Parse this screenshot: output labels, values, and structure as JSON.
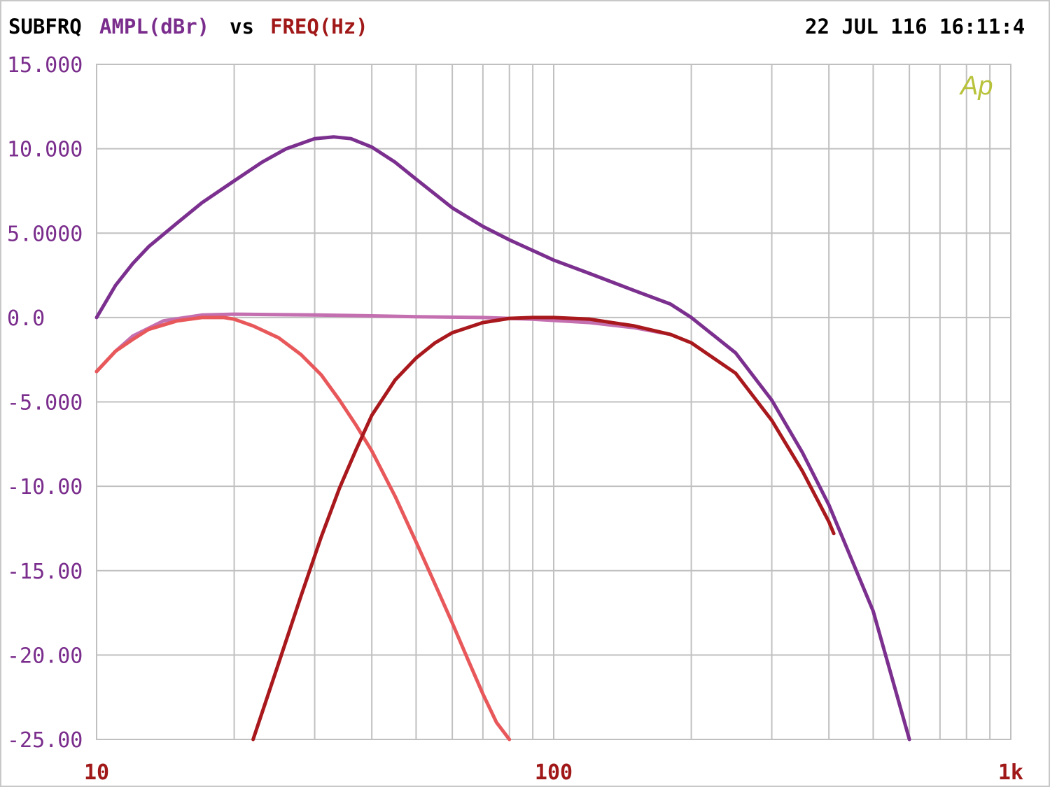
{
  "header": {
    "test_name": "SUBFRQ",
    "y_quantity": "AMPL(dBr)",
    "vs_word": "vs",
    "x_quantity": "FREQ(Hz)",
    "timestamp": "22 JUL 116 16:11:4"
  },
  "logo_text": "Ap",
  "colors": {
    "y_axis": "#7a2d8c",
    "x_axis": "#a01818",
    "grid": "#c0c0c0",
    "logo": "#b8c23a",
    "header_text": "#000000"
  },
  "chart_data": {
    "type": "line",
    "title": "",
    "xlabel": "FREQ(Hz)",
    "ylabel": "AMPL(dBr)",
    "x_scale": "log",
    "xlim": [
      10,
      1000
    ],
    "ylim": [
      -25,
      15
    ],
    "grid": true,
    "y_ticks": [
      15,
      10,
      5,
      0,
      -5,
      -10,
      -15,
      -20,
      -25
    ],
    "y_tick_labels": [
      "15.000",
      "10.000",
      "5.0000",
      "0.0",
      "-5.000",
      "-10.00",
      "-15.00",
      "-20.00",
      "-25.00"
    ],
    "x_ticks": [
      10,
      100,
      1000
    ],
    "x_tick_labels": [
      "10",
      "100",
      "1k"
    ],
    "series": [
      {
        "color": "#7b2f8e",
        "x": [
          10,
          11,
          12,
          13,
          15,
          17,
          20,
          23,
          26,
          30,
          33,
          36,
          40,
          45,
          50,
          60,
          70,
          80,
          100,
          120,
          150,
          180,
          200,
          250,
          300,
          350,
          400,
          500,
          600
        ],
        "y": [
          0,
          1.9,
          3.2,
          4.2,
          5.6,
          6.8,
          8.1,
          9.2,
          10.0,
          10.6,
          10.7,
          10.6,
          10.1,
          9.2,
          8.2,
          6.5,
          5.4,
          4.6,
          3.4,
          2.6,
          1.6,
          0.8,
          0.0,
          -2.1,
          -4.9,
          -8.0,
          -11.1,
          -17.4,
          -25.0
        ]
      },
      {
        "color": "#c46fb0",
        "x": [
          10,
          11,
          12,
          14,
          17,
          20,
          30,
          40,
          50,
          70,
          90,
          120,
          150,
          180
        ],
        "y": [
          -3.2,
          -2.0,
          -1.1,
          -0.2,
          0.15,
          0.2,
          0.15,
          0.1,
          0.05,
          0.0,
          -0.1,
          -0.3,
          -0.6,
          -1.0
        ]
      },
      {
        "color": "#e8585a",
        "x": [
          10,
          11,
          12,
          13,
          15,
          17,
          19,
          20,
          22,
          25,
          28,
          31,
          34,
          37,
          40,
          45,
          50,
          55,
          60,
          65,
          70,
          75,
          80
        ],
        "y": [
          -3.2,
          -2.0,
          -1.3,
          -0.7,
          -0.2,
          0.0,
          0.0,
          -0.1,
          -0.5,
          -1.2,
          -2.2,
          -3.4,
          -4.9,
          -6.4,
          -7.9,
          -10.6,
          -13.3,
          -15.8,
          -18.1,
          -20.3,
          -22.3,
          -24.0,
          -25.0
        ]
      },
      {
        "color": "#a8181c",
        "x": [
          22,
          25,
          28,
          31,
          34,
          37,
          40,
          45,
          50,
          55,
          60,
          70,
          80,
          90,
          100,
          120,
          150,
          180,
          200,
          250,
          300,
          350,
          400,
          410
        ],
        "y": [
          -25.0,
          -20.5,
          -16.5,
          -13.0,
          -10.1,
          -7.8,
          -5.8,
          -3.7,
          -2.4,
          -1.5,
          -0.9,
          -0.3,
          -0.05,
          0.0,
          0.0,
          -0.1,
          -0.5,
          -1.0,
          -1.5,
          -3.3,
          -6.1,
          -9.1,
          -12.1,
          -12.8
        ]
      }
    ]
  }
}
